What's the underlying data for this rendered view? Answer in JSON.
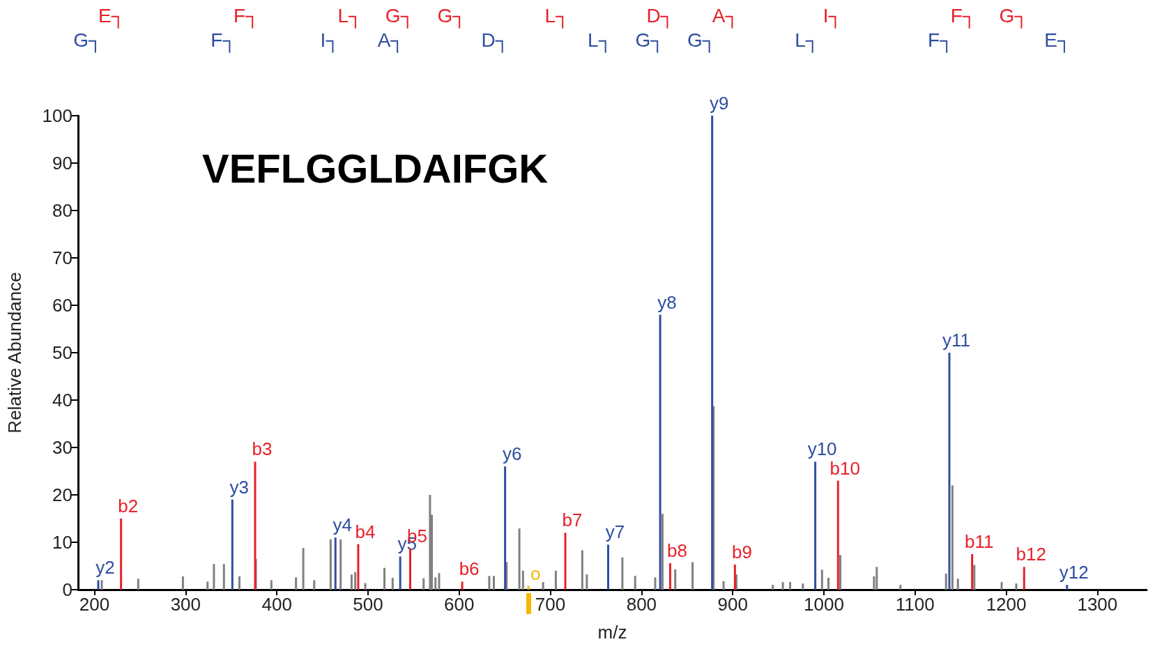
{
  "chart_data": {
    "type": "bar",
    "xlabel": "m/z",
    "ylabel": "Relative Abundance",
    "xlim": [
      182,
      1354
    ],
    "xticks": [
      200,
      300,
      400,
      500,
      600,
      700,
      800,
      900,
      1000,
      1100,
      1200,
      1300
    ],
    "ylim": [
      0,
      100
    ],
    "yticks": [
      0,
      10,
      20,
      30,
      40,
      50,
      60,
      70,
      80,
      90,
      100
    ],
    "grid": false,
    "series": [
      {
        "color": "#808080",
        "x": [
          208,
          248,
          297,
          324,
          331,
          342,
          359,
          377,
          394,
          421,
          429,
          441,
          459,
          470,
          482,
          486,
          497,
          518,
          527,
          561,
          568,
          570,
          574,
          578,
          633,
          638,
          652,
          666,
          670,
          692,
          706,
          735,
          740,
          779,
          793,
          815,
          823,
          837,
          856,
          879,
          890,
          904,
          944,
          955,
          963,
          977,
          998,
          1005,
          1018,
          1055,
          1058,
          1084,
          1134,
          1141,
          1147,
          1165,
          1195,
          1211
        ],
        "values": [
          2,
          2.3,
          2.8,
          1.7,
          5.4,
          5.4,
          2.8,
          6.5,
          2,
          2.6,
          8.8,
          2,
          10.6,
          10.6,
          3.2,
          3.7,
          1.4,
          4.6,
          2.5,
          2.4,
          20,
          15.8,
          2.6,
          3.5,
          2.9,
          2.9,
          5.8,
          12.9,
          4,
          1.6,
          4,
          8.3,
          3.2,
          6.8,
          2.9,
          2.6,
          16,
          4.3,
          5.8,
          38.7,
          1.8,
          3.2,
          1,
          1.6,
          1.6,
          1.3,
          4.2,
          2.5,
          7.3,
          2.8,
          4.8,
          1,
          3.4,
          22,
          2.3,
          5.2,
          1.6,
          1.3
        ]
      },
      {
        "color": "#2e4ea0",
        "x": [
          204.13,
          351.2,
          464.28,
          535.32,
          650.35,
          763.43,
          820.45,
          877.47,
          990.56,
          1137.63,
          1266.67
        ],
        "values": [
          2,
          19,
          11,
          7,
          26,
          9.5,
          58,
          100,
          27,
          50,
          1
        ],
        "value_labels": [
          "y2",
          "y3",
          "y4",
          "y5",
          "y6",
          "y7",
          "y8",
          "y9",
          "y10",
          "y11",
          "y12"
        ]
      },
      {
        "color": "#e8202a",
        "x": [
          229.11,
          376.18,
          489.27,
          546.29,
          603.31,
          716.39,
          831.42,
          902.46,
          1015.54,
          1162.61,
          1219.63
        ],
        "values": [
          15,
          27,
          9.6,
          8.7,
          1.7,
          12,
          5.6,
          5.3,
          23,
          7.5,
          4.8
        ],
        "value_labels": [
          "b2",
          "b3",
          "b4",
          "b5",
          "b6",
          "b7",
          "b8",
          "b9",
          "b10",
          "b11",
          "b12"
        ]
      },
      {
        "color": "#f5b800",
        "x": [
          676
        ],
        "values": [
          0.8
        ],
        "value_labels": [
          "o"
        ]
      }
    ],
    "annotations": [
      "VEFLGGLDAIFGK",
      "G┐",
      "F┐",
      "I┐",
      "A┐",
      "D┐",
      "L┐",
      "G┐",
      "G┐",
      "L┐",
      "F┐",
      "E┐",
      "E┐",
      "F┐",
      "L┐",
      "G┐",
      "G┐",
      "L┐",
      "D┐",
      "A┐",
      "I┐",
      "F┐",
      "G┐"
    ]
  }
}
